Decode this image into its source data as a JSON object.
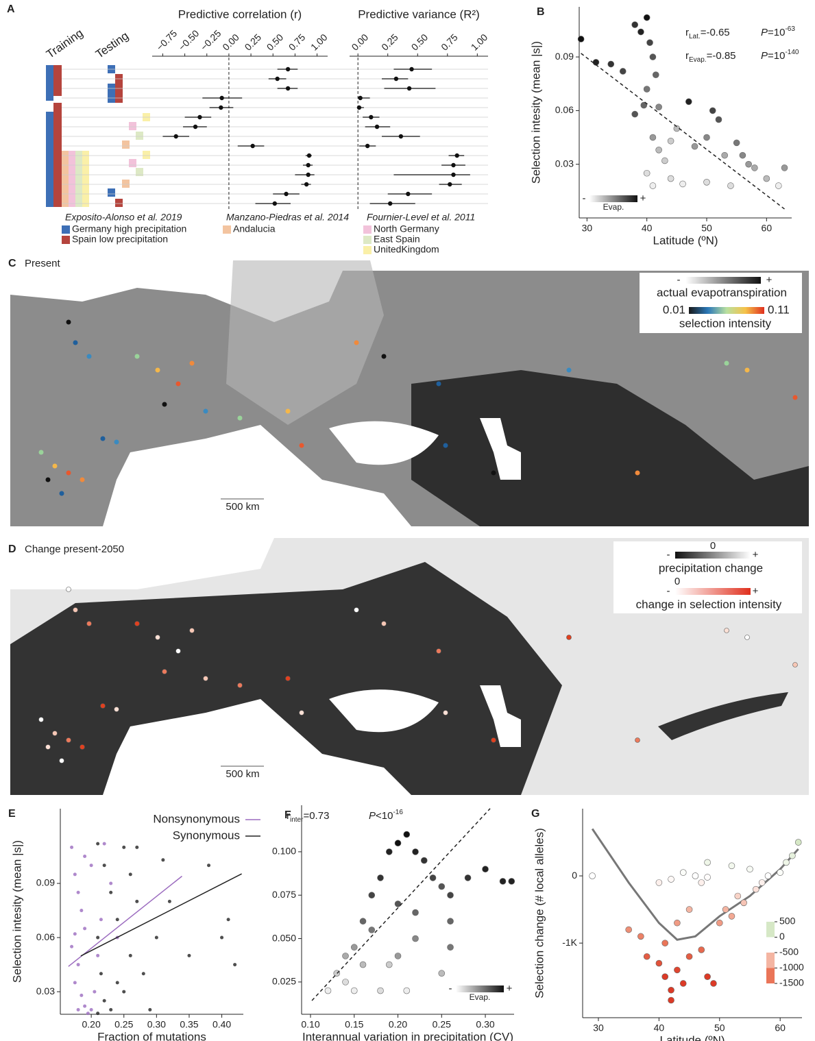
{
  "chart_data": [
    {
      "type": "forest",
      "panel": "A",
      "training": "Training",
      "testing": "Testing",
      "r": {
        "title": "Predictive correlation (r)",
        "xlim": [
          -0.87,
          1.12
        ],
        "xticks": [
          {
            "value": -0.75,
            "label": "−0.75"
          },
          {
            "value": -0.5,
            "label": "−0.50"
          },
          {
            "value": -0.25,
            "label": "−0.25"
          },
          {
            "value": 0,
            "label": "0.00"
          },
          0.25,
          {
            "value": 0.5,
            "label": "0.50"
          },
          0.75,
          {
            "value": 1,
            "label": "1.00"
          }
        ],
        "values": [
          0.67,
          0.55,
          0.67,
          -0.08,
          -0.09,
          -0.33,
          -0.38,
          -0.6,
          0.27,
          0.91,
          0.9,
          0.9,
          0.88,
          0.65,
          0.52
        ],
        "lower": [
          0.55,
          0.45,
          0.55,
          -0.3,
          -0.22,
          -0.5,
          -0.52,
          -0.75,
          0.1,
          0.87,
          0.84,
          0.75,
          0.82,
          0.5,
          0.3
        ],
        "upper": [
          0.78,
          0.65,
          0.78,
          0.15,
          0.05,
          -0.2,
          -0.25,
          -0.45,
          0.4,
          0.94,
          0.95,
          0.97,
          0.93,
          0.8,
          0.7
        ]
      },
      "r2": {
        "title": "Predictive variance (R²)",
        "xlim": [
          -0.07,
          1.09
        ],
        "xticks": [
          {
            "value": 0,
            "label": "0.00"
          },
          0.25,
          {
            "value": 0.5,
            "label": "0.50"
          },
          0.75,
          {
            "value": 1,
            "label": "1.00"
          }
        ],
        "values": [
          0.45,
          0.32,
          0.43,
          0.02,
          0.01,
          0.11,
          0.16,
          0.36,
          0.08,
          0.83,
          0.8,
          0.8,
          0.77,
          0.42,
          0.27
        ],
        "lower": [
          0.3,
          0.2,
          0.22,
          0,
          0,
          0.04,
          0.06,
          0.2,
          0.01,
          0.76,
          0.7,
          0.3,
          0.68,
          0.25,
          0.1
        ],
        "upper": [
          0.62,
          0.42,
          0.65,
          0.1,
          0.05,
          0.18,
          0.27,
          0.52,
          0.15,
          0.89,
          0.9,
          0.94,
          0.87,
          0.62,
          0.48
        ]
      },
      "legend": [
        {
          "title": "Exposito-Alonso et al. 2019",
          "items": [
            {
              "name": "Germany high precipitation",
              "color": "#3d6fb6"
            },
            {
              "name": "Spain low precipitation",
              "color": "#b5443d"
            }
          ]
        },
        {
          "title": "Manzano-Piedras et al. 2014",
          "items": [
            {
              "name": "Andalucia",
              "color": "#f3c4a0"
            }
          ]
        },
        {
          "title": "Fournier-Level et al. 2011",
          "items": [
            {
              "name": "North Germany",
              "color": "#f2c2da"
            },
            {
              "name": "East Spain",
              "color": "#dde9c5"
            },
            {
              "name": "UnitedKingdom",
              "color": "#faf0a8"
            }
          ]
        }
      ]
    },
    {
      "type": "scatter",
      "panel": "B",
      "xlabel": "Latitude (ºN)",
      "ylabel": "Selection intesity (mean |s|)",
      "xlim": [
        28.7,
        64.2
      ],
      "xticks": [
        30,
        40,
        50,
        60
      ],
      "ylim": [
        0,
        0.118
      ],
      "yticks": [
        0.03,
        0.06,
        0.09
      ],
      "series": [
        {
          "x": [
            29,
            31.5,
            34,
            36,
            38,
            39,
            40,
            40.5,
            41,
            41.5,
            40,
            39.5,
            42,
            38,
            41,
            42,
            43,
            40,
            41,
            44,
            47,
            51,
            52,
            50,
            48,
            53,
            55,
            56,
            57,
            50,
            46,
            54,
            58,
            60,
            63,
            62,
            45,
            44
          ],
          "values": [
            0.1,
            0.087,
            0.086,
            0.082,
            0.108,
            0.104,
            0.112,
            0.098,
            0.09,
            0.08,
            0.072,
            0.063,
            0.062,
            0.058,
            0.045,
            0.038,
            0.032,
            0.025,
            0.018,
            0.022,
            0.065,
            0.06,
            0.055,
            0.045,
            0.04,
            0.035,
            0.042,
            0.035,
            0.03,
            0.02,
            0.019,
            0.018,
            0.028,
            0.022,
            0.028,
            0.018,
            0.05,
            0.043
          ],
          "colors": [
            "#111",
            "#222",
            "#333",
            "#444",
            "#333",
            "#222",
            "#111",
            "#444",
            "#555",
            "#666",
            "#777",
            "#666",
            "#888",
            "#555",
            "#999",
            "#bbb",
            "#ccc",
            "#ddd",
            "#eee",
            "#ddd",
            "#222",
            "#444",
            "#555",
            "#888",
            "#999",
            "#aaa",
            "#777",
            "#888",
            "#999",
            "#ddd",
            "#eee",
            "#ddd",
            "#aaa",
            "#bbb",
            "#999",
            "#eee",
            "#bbb",
            "#ccc"
          ]
        }
      ],
      "trend": {
        "x": [
          29,
          63
        ],
        "y": [
          0.092,
          0.005
        ]
      },
      "stats": [
        {
          "r": "r",
          "sub": "Lat.",
          "val": "=-0.65",
          "p": "P",
          "eq": "=10",
          "exp": "-63"
        },
        {
          "r": "r",
          "sub": "Evap.",
          "val": "=-0.85",
          "p": "P",
          "eq": "=10",
          "exp": "-140"
        }
      ],
      "evap": {
        "minus": "-",
        "label": "Evap.",
        "plus": "+"
      }
    },
    {
      "type": "scatter",
      "panel": "E",
      "xlabel": "Fraction of mutations",
      "ylabel": "Selection intesity (mean |s|)",
      "xlim": [
        0.1526,
        0.433
      ],
      "xticks": [
        {
          "value": 0.2,
          "label": "0.20"
        },
        0.25,
        {
          "value": 0.3,
          "label": "0.30"
        },
        0.35,
        {
          "value": 0.4,
          "label": "0.40"
        }
      ],
      "ylim": [
        0.0175,
        0.1314
      ],
      "yticks": [
        0.03,
        0.06,
        0.09
      ],
      "series": [
        {
          "name": "Nonsynonymous",
          "color": "#9b6bbf",
          "x": [
            0.17,
            0.175,
            0.18,
            0.185,
            0.19,
            0.17,
            0.18,
            0.175,
            0.185,
            0.19,
            0.195,
            0.2,
            0.205,
            0.21,
            0.215,
            0.2,
            0.22,
            0.23,
            0.24,
            0.18,
            0.19,
            0.175
          ],
          "values": [
            0.11,
            0.095,
            0.085,
            0.075,
            0.065,
            0.055,
            0.045,
            0.035,
            0.028,
            0.022,
            0.018,
            0.02,
            0.03,
            0.05,
            0.07,
            0.1,
            0.112,
            0.09,
            0.06,
            0.02,
            0.105,
            0.062
          ],
          "trend": {
            "x": [
              0.165,
              0.339
            ],
            "y": [
              0.044,
              0.094
            ]
          }
        },
        {
          "name": "Synonymous",
          "color": "#222222",
          "x": [
            0.21,
            0.22,
            0.23,
            0.24,
            0.25,
            0.26,
            0.27,
            0.21,
            0.215,
            0.22,
            0.23,
            0.24,
            0.25,
            0.26,
            0.28,
            0.3,
            0.32,
            0.35,
            0.38,
            0.4,
            0.42,
            0.41,
            0.29,
            0.27,
            0.31,
            0.21
          ],
          "values": [
            0.112,
            0.1,
            0.085,
            0.07,
            0.11,
            0.095,
            0.08,
            0.06,
            0.04,
            0.025,
            0.02,
            0.035,
            0.03,
            0.05,
            0.04,
            0.06,
            0.08,
            0.05,
            0.1,
            0.06,
            0.045,
            0.07,
            0.02,
            0.11,
            0.103,
            0.018
          ],
          "trend": {
            "x": [
              0.184,
              0.4305
            ],
            "y": [
              0.0498,
              0.0953
            ]
          }
        }
      ]
    },
    {
      "type": "scatter",
      "panel": "F",
      "xlabel": "Interannual variation in precipitation (CV)",
      "xlim": [
        0.0898,
        0.3329
      ],
      "xticks": [
        {
          "value": 0.1,
          "label": "0.10"
        },
        0.15,
        {
          "value": 0.2,
          "label": "0.20"
        },
        0.25,
        {
          "value": 0.3,
          "label": "0.30"
        }
      ],
      "ylim": [
        0.0064,
        0.1268
      ],
      "yticks": [
        0.025,
        {
          "value": 0.05,
          "label": "0.050"
        },
        0.075,
        {
          "value": 0.1,
          "label": "0.100"
        }
      ],
      "series": [
        {
          "x": [
            0.12,
            0.13,
            0.14,
            0.15,
            0.14,
            0.16,
            0.17,
            0.16,
            0.17,
            0.18,
            0.19,
            0.2,
            0.21,
            0.22,
            0.23,
            0.2,
            0.22,
            0.24,
            0.25,
            0.26,
            0.28,
            0.3,
            0.32,
            0.33,
            0.26,
            0.26,
            0.2,
            0.21,
            0.18,
            0.19,
            0.15,
            0.25,
            0.22
          ],
          "values": [
            0.02,
            0.03,
            0.04,
            0.045,
            0.025,
            0.035,
            0.055,
            0.06,
            0.075,
            0.085,
            0.1,
            0.105,
            0.11,
            0.1,
            0.095,
            0.07,
            0.065,
            0.085,
            0.08,
            0.075,
            0.085,
            0.09,
            0.083,
            0.083,
            0.06,
            0.045,
            0.04,
            0.02,
            0.02,
            0.035,
            0.02,
            0.03,
            0.05
          ],
          "colors": [
            "#eee",
            "#ccc",
            "#aaa",
            "#999",
            "#ddd",
            "#bbb",
            "#777",
            "#666",
            "#444",
            "#333",
            "#222",
            "#111",
            "#111",
            "#222",
            "#333",
            "#555",
            "#666",
            "#444",
            "#555",
            "#444",
            "#333",
            "#222",
            "#222",
            "#222",
            "#666",
            "#777",
            "#999",
            "#eee",
            "#ddd",
            "#ccc",
            "#eee",
            "#bbb",
            "#888"
          ]
        }
      ],
      "trend": {
        "x": [
          0.1016,
          0.3055
        ],
        "y": [
          0.0143,
          0.1249
        ]
      },
      "stats": [
        {
          "r": "r",
          "sub": "inter",
          "val": "=0.73",
          "p": "P",
          "eq": "<10",
          "exp": "-16"
        }
      ],
      "evap": {
        "minus": "-",
        "label": "Evap.",
        "plus": "+"
      }
    },
    {
      "type": "scatter",
      "panel": "G",
      "xlabel": "Latitude (ºN)",
      "ylabel": "Selection change (# local alleles)",
      "xlim": [
        27.4,
        63.6
      ],
      "xticks": [
        30,
        40,
        50,
        60
      ],
      "ylim": [
        -2110,
        1000
      ],
      "yticks": [
        0,
        {
          "value": -1000,
          "label": "-1K"
        }
      ],
      "series": [
        {
          "x": [
            29,
            35,
            37,
            38,
            40,
            41,
            42,
            42,
            43,
            44,
            45,
            41,
            43,
            40,
            42,
            44,
            46,
            48,
            47,
            45,
            47,
            48,
            49,
            50,
            51,
            52,
            53,
            54,
            56,
            57,
            58,
            60,
            61,
            62,
            63,
            48,
            52,
            55
          ],
          "values": [
            0,
            -800,
            -900,
            -1200,
            -1300,
            -1500,
            -1700,
            -1850,
            -1400,
            -1600,
            -1200,
            -1000,
            -700,
            -100,
            -50,
            50,
            0,
            -20,
            -100,
            -500,
            -1100,
            -1500,
            -1600,
            -700,
            -500,
            -600,
            -300,
            -400,
            -200,
            -100,
            0,
            50,
            200,
            300,
            500,
            200,
            150,
            100
          ]
        }
      ],
      "curve": {
        "x": [
          29,
          35,
          40,
          43,
          46,
          50,
          55,
          60,
          63
        ],
        "y": [
          700,
          -100,
          -700,
          -950,
          -900,
          -600,
          -300,
          100,
          400
        ]
      },
      "colorbar": {
        "ticks": [
          500,
          0,
          -500,
          -1000,
          -1500
        ],
        "colors": [
          "#d6e8c6",
          "#ffffff",
          "#f4b5a2",
          "#ea7558",
          "#dc3a26"
        ]
      }
    }
  ],
  "maps": [
    {
      "label": "C",
      "title": "Present",
      "scale": "500 km",
      "legend": {
        "minus": "-",
        "plus": "+",
        "evap": "actual evapotranspiration",
        "low": 0.01,
        "high": 0.11,
        "selection": "selection intensity"
      }
    },
    {
      "label": "D",
      "title": "Change present-2050",
      "scale": "500 km",
      "legend": {
        "p_minus": "-",
        "p_zero": 0,
        "p_plus": "+",
        "precip": "precipitation change",
        "s_minus": "-",
        "s_zero": 0,
        "s_plus": "+",
        "selection": "change in selection intensity"
      }
    }
  ]
}
